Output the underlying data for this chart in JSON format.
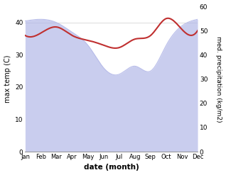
{
  "months": [
    "Jan",
    "Feb",
    "Mar",
    "Apr",
    "May",
    "Jun",
    "Jul",
    "Aug",
    "Sep",
    "Oct",
    "Nov",
    "Dec"
  ],
  "max_temp": [
    40.5,
    41.0,
    40.0,
    37.0,
    33.0,
    26.0,
    24.0,
    26.5,
    25.0,
    33.0,
    39.0,
    41.0
  ],
  "med_precip": [
    48.0,
    49.0,
    51.5,
    48.0,
    46.0,
    44.0,
    43.0,
    46.5,
    48.0,
    55.0,
    50.5,
    50.0
  ],
  "temp_fill_color": "#b3b8e8",
  "precip_color": "#c03030",
  "temp_ylim": [
    0,
    45
  ],
  "precip_ylim": [
    0,
    60
  ],
  "xlabel": "date (month)",
  "ylabel_left": "max temp (C)",
  "ylabel_right": "med. precipitation (kg/m2)",
  "yticks_left": [
    0,
    10,
    20,
    30,
    40
  ],
  "yticks_right": [
    0,
    10,
    20,
    30,
    40,
    50,
    60
  ],
  "bg_color": "#ffffff"
}
